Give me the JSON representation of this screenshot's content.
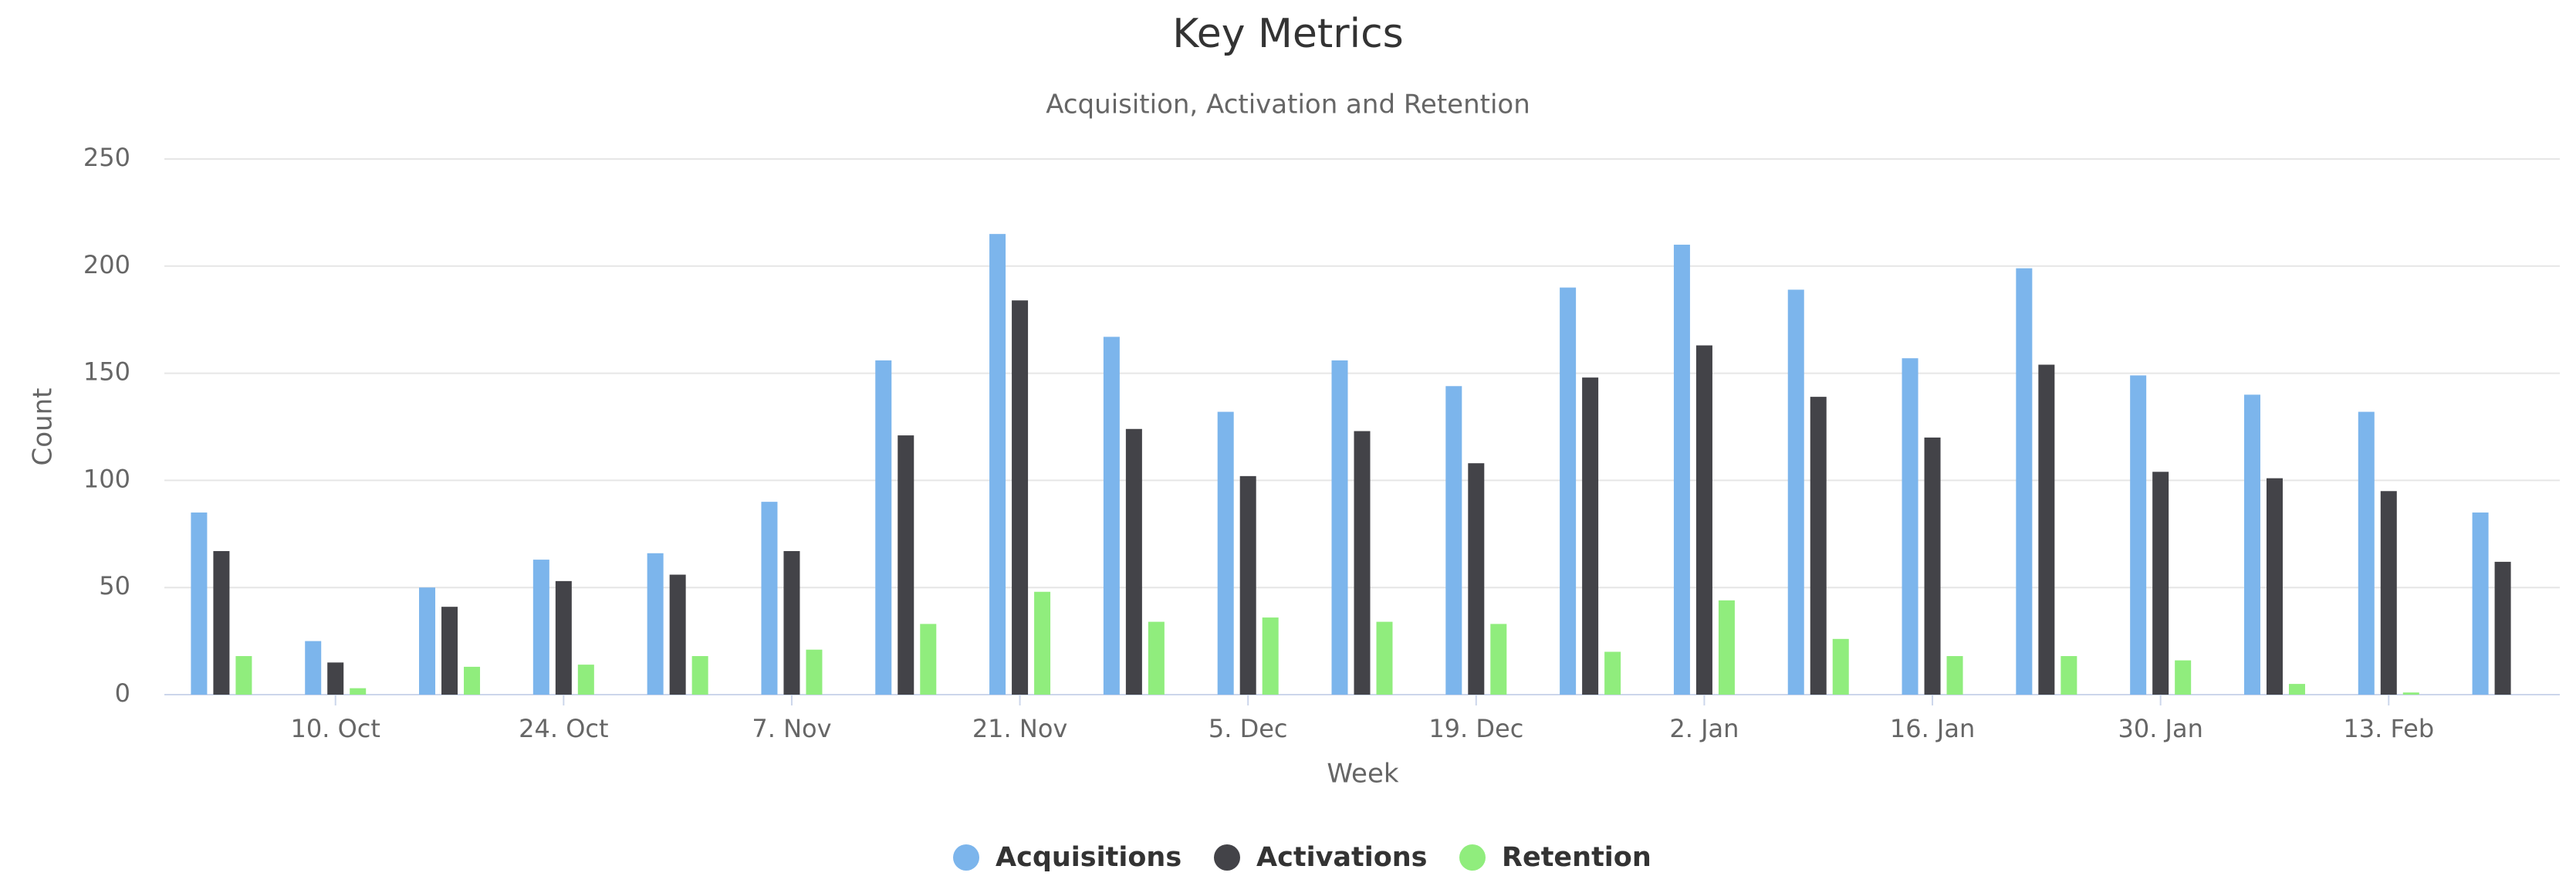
{
  "chart_data": {
    "type": "bar",
    "title": "Key Metrics",
    "subtitle": "Acquisition, Activation and Retention",
    "x_label": "Week",
    "y_label": "Count",
    "categories": [
      null,
      "10. Oct",
      null,
      "24. Oct",
      null,
      "7. Nov",
      null,
      "21. Nov",
      null,
      "5. Dec",
      null,
      "19. Dec",
      null,
      "2. Jan",
      null,
      "16. Jan",
      null,
      "30. Jan",
      null,
      "13. Feb",
      null
    ],
    "series": [
      {
        "name": "Acquisitions",
        "color": "#7cb5ec",
        "values": [
          85,
          25,
          50,
          63,
          66,
          90,
          156,
          215,
          167,
          132,
          156,
          144,
          190,
          210,
          189,
          157,
          199,
          149,
          140,
          132,
          85
        ]
      },
      {
        "name": "Activations",
        "color": "#434348",
        "values": [
          67,
          15,
          41,
          53,
          56,
          67,
          121,
          184,
          124,
          102,
          123,
          108,
          148,
          163,
          139,
          120,
          154,
          104,
          101,
          95,
          62
        ]
      },
      {
        "name": "Retention",
        "color": "#90ed7d",
        "values": [
          18,
          3,
          13,
          14,
          18,
          21,
          33,
          48,
          34,
          36,
          34,
          33,
          20,
          44,
          26,
          18,
          18,
          16,
          5,
          1,
          0
        ]
      }
    ],
    "ylim": [
      0,
      250
    ],
    "yticks": [
      0,
      50,
      100,
      150,
      200,
      250
    ],
    "grid": true,
    "legend": "bottom"
  }
}
